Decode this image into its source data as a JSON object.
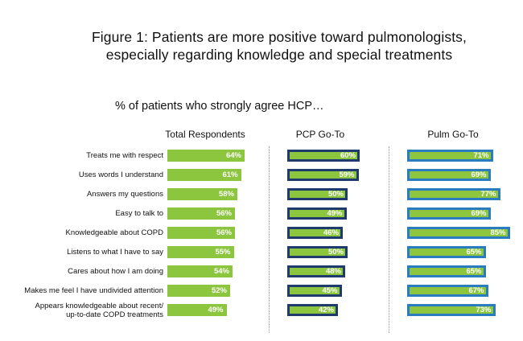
{
  "chart_data": {
    "type": "bar",
    "orientation": "horizontal",
    "title_lines": [
      "Figure 1: Patients are more positive toward pulmonologists,",
      "especially regarding knowledge and special treatments"
    ],
    "subtitle": "% of patients who strongly agree HCP…",
    "value_suffix": "%",
    "categories": [
      "Treats me with respect",
      "Uses words I understand",
      "Answers my questions",
      "Easy to talk to",
      "Knowledgeable about COPD",
      "Listens to what I have to say",
      "Cares about how I am doing",
      "Makes me feel I have undivided attention",
      "Appears knowledgeable about recent/ up-to-date COPD treatments"
    ],
    "series": [
      {
        "name": "Total Respondents",
        "values": [
          64,
          61,
          58,
          56,
          56,
          55,
          54,
          52,
          49
        ],
        "fill": "#8cc63f",
        "border": "none"
      },
      {
        "name": "PCP Go-To",
        "values": [
          60,
          59,
          50,
          49,
          46,
          50,
          48,
          45,
          42
        ],
        "fill": "#8cc63f",
        "border": "#1f3b6e"
      },
      {
        "name": "Pulm Go-To",
        "values": [
          71,
          69,
          77,
          69,
          85,
          65,
          65,
          67,
          73
        ],
        "fill": "#8cc63f",
        "border": "#2a7bbf"
      }
    ],
    "xlim": [
      0,
      100
    ],
    "grid": false,
    "legend": "column headers"
  }
}
